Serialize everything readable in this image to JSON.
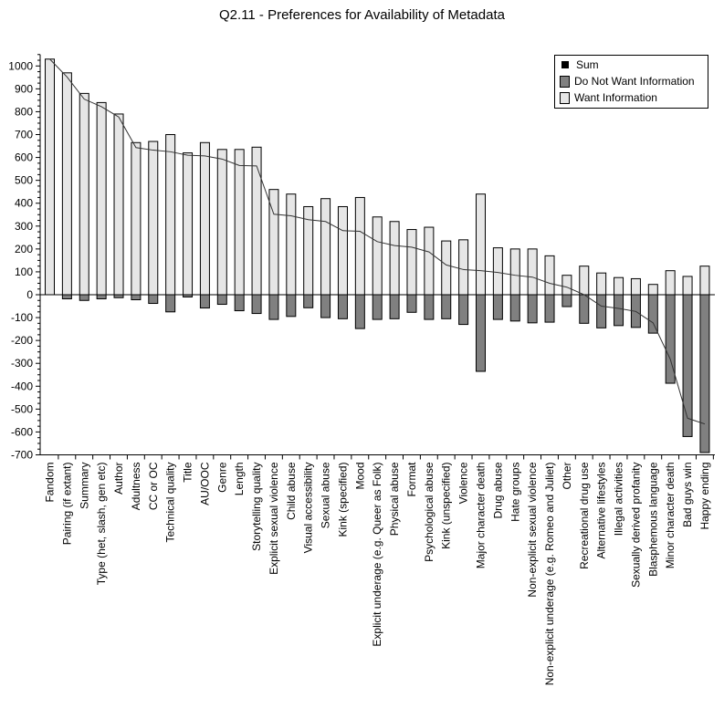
{
  "chart_data": {
    "type": "bar",
    "title": "Q2.11 - Preferences for Availability of Metadata",
    "xlabel": "",
    "ylabel": "",
    "ylim": [
      -700,
      1050
    ],
    "yticks": [
      -700,
      -600,
      -500,
      -400,
      -300,
      -200,
      -100,
      0,
      100,
      200,
      300,
      400,
      500,
      600,
      700,
      800,
      900,
      1000
    ],
    "grid": false,
    "legend_position": "top-right",
    "categories": [
      "Fandom",
      "Pairing (if extant)",
      "Summary",
      "Type (het, slash, gen etc)",
      "Author",
      "Adultness",
      "CC or OC",
      "Technical quality",
      "Title",
      "AU/OOC",
      "Genre",
      "Length",
      "Storytelling quality",
      "Explicit sexual violence",
      "Child abuse",
      "Visual accessibility",
      "Sexual abuse",
      "Kink (specified)",
      "Mood",
      "Explicit underage (e.g. Queer as Folk)",
      "Physical abuse",
      "Format",
      "Psychological abuse",
      "Kink (unspecified)",
      "Violence",
      "Major character death",
      "Drug abuse",
      "Hate groups",
      "Non-explicit sexual violence",
      "Non-explicit underage (e.g. Romeo and Juliet)",
      "Other",
      "Recreational drug use",
      "Alternative lifestyles",
      "Illegal activities",
      "Sexually derived profanity",
      "Blasphemous language",
      "Minor character death",
      "Bad guys win",
      "Happy ending"
    ],
    "series": [
      {
        "name": "Sum",
        "kind": "line",
        "color": "#000000",
        "values": [
          1030,
          952,
          855,
          822,
          777,
          643,
          632,
          625,
          610,
          607,
          593,
          565,
          563,
          352,
          345,
          328,
          320,
          280,
          277,
          232,
          215,
          208,
          187,
          130,
          110,
          105,
          97,
          85,
          77,
          50,
          33,
          0,
          -50,
          -60,
          -73,
          -123,
          -282,
          -540,
          -565
        ]
      },
      {
        "name": "Do Not Want Information",
        "kind": "bar",
        "color": "#808080",
        "values": [
          0,
          -18,
          -25,
          -18,
          -13,
          -22,
          -38,
          -75,
          -10,
          -58,
          -42,
          -70,
          -82,
          -108,
          -95,
          -57,
          -100,
          -105,
          -148,
          -108,
          -105,
          -77,
          -108,
          -105,
          -130,
          -335,
          -108,
          -115,
          -123,
          -120,
          -52,
          -125,
          -145,
          -135,
          -143,
          -168,
          -387,
          -620,
          -690
        ]
      },
      {
        "name": "Want Information",
        "kind": "bar",
        "color": "#e6e6e6",
        "values": [
          1030,
          970,
          880,
          840,
          790,
          665,
          670,
          700,
          620,
          665,
          635,
          635,
          645,
          460,
          440,
          385,
          420,
          385,
          425,
          340,
          320,
          285,
          295,
          235,
          240,
          440,
          205,
          200,
          200,
          170,
          85,
          125,
          95,
          75,
          70,
          45,
          105,
          80,
          125
        ]
      }
    ]
  }
}
